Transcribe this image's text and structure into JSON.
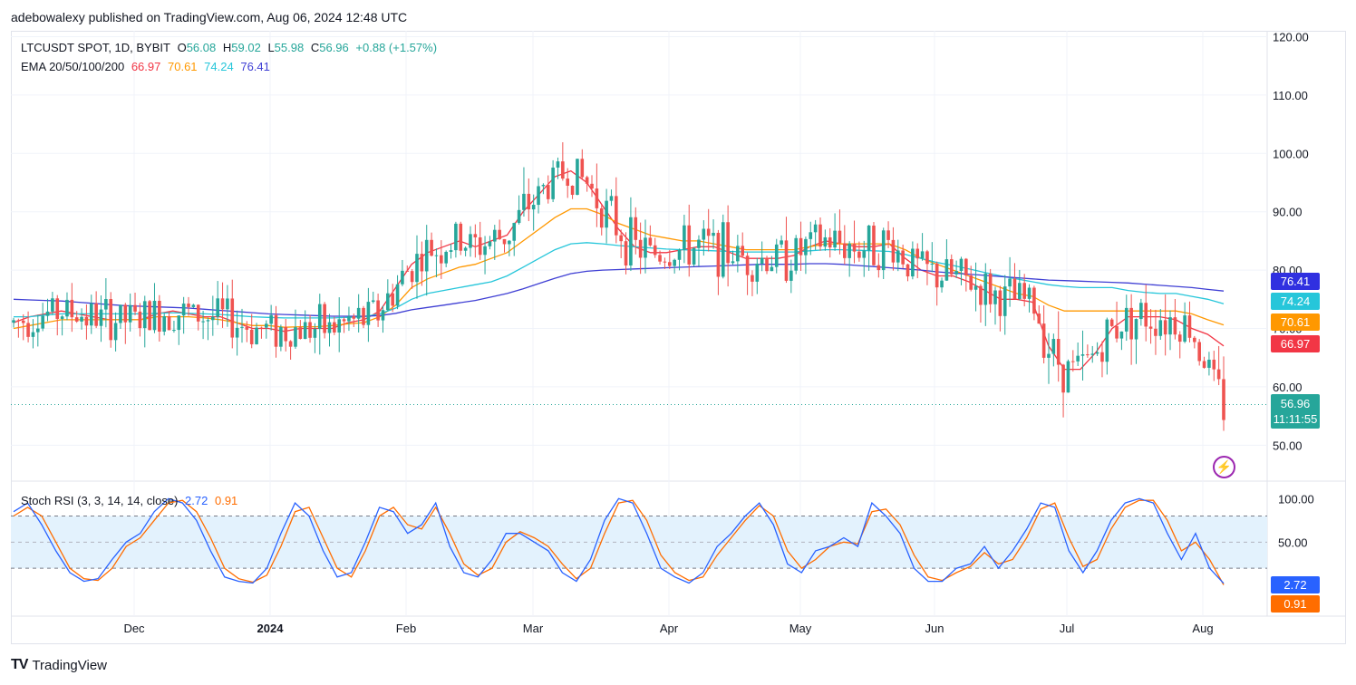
{
  "header": {
    "text": "adebowalexy published on TradingView.com, Aug 06, 2024 12:48 UTC"
  },
  "legend": {
    "symbol": "LTCUSDT SPOT, 1D, BYBIT",
    "o_label": "O",
    "o_value": "56.08",
    "h_label": "H",
    "h_value": "59.02",
    "l_label": "L",
    "l_value": "55.98",
    "c_label": "C",
    "c_value": "56.96",
    "change": "+0.88 (+1.57%)",
    "ema_label": "EMA 20/50/100/200",
    "ema20": "66.97",
    "ema50": "70.61",
    "ema100": "74.24",
    "ema200": "76.41"
  },
  "price_tags": {
    "ema200": "76.41",
    "ema100": "74.24",
    "ema50": "70.61",
    "ema20": "66.97",
    "last": "56.96",
    "countdown": "11:11:55"
  },
  "rsi_legend": {
    "label": "Stoch RSI (3, 3, 14, 14, close)",
    "k": "2.72",
    "d": "0.91"
  },
  "rsi_tags": {
    "k": "2.72",
    "d": "0.91"
  },
  "footer": {
    "logo": "TV",
    "brand": "TradingView"
  },
  "colors": {
    "up": "#26a69a",
    "down": "#ef5350",
    "ema20": "#f23645",
    "ema50": "#ff9800",
    "ema100": "#26c6da",
    "ema200": "#3f3fd4",
    "stoch_k": "#2962ff",
    "stoch_d": "#ff6d00",
    "band": "#e3f2fd"
  },
  "chart_data": [
    {
      "type": "candlestick",
      "title": "LTCUSDT SPOT, 1D, BYBIT",
      "x_ticks": [
        "Dec",
        "2024",
        "Feb",
        "Mar",
        "Apr",
        "May",
        "Jun",
        "Jul",
        "Aug"
      ],
      "y_ticks": [
        "120.00",
        "110.00",
        "100.00",
        "90.00",
        "80.00",
        "70.00",
        "60.00",
        "50.00"
      ],
      "ylim": [
        44,
        121
      ],
      "series": [
        {
          "name": "EMA 20",
          "values": [
            71,
            72,
            72.5,
            73,
            72.5,
            72,
            71.5,
            71.5,
            71.5,
            72.5,
            73,
            72.5,
            72,
            72,
            71,
            70,
            70,
            69.5,
            70,
            70,
            70,
            71,
            71.5,
            73,
            77,
            81,
            83,
            84,
            85,
            84,
            85,
            86,
            90,
            93,
            96,
            97,
            95,
            91,
            87,
            84,
            83,
            83,
            83.5,
            84,
            84,
            83,
            82,
            82,
            82,
            82.5,
            84,
            85,
            84.5,
            84,
            84,
            84.5,
            82,
            80,
            79,
            79,
            78,
            76.5,
            75,
            75,
            74.5,
            67,
            63,
            63,
            66,
            70,
            72,
            72,
            72,
            71.5,
            70,
            69,
            67
          ]
        },
        {
          "name": "EMA 50",
          "values": [
            70,
            70.5,
            71,
            71.5,
            71.5,
            71.5,
            71.5,
            71.5,
            71.5,
            72,
            72,
            72,
            71.8,
            71.5,
            71,
            70.5,
            70.5,
            70.2,
            70.3,
            70.3,
            70.5,
            70.8,
            71,
            72,
            74,
            77,
            78.5,
            79.5,
            80.5,
            81,
            82,
            83,
            85,
            87,
            89,
            90.5,
            90.5,
            89.5,
            88,
            87,
            86,
            85.5,
            85,
            85,
            84.5,
            84,
            83.5,
            83.5,
            83.5,
            83.5,
            84,
            84.5,
            84.5,
            84.5,
            84.5,
            84.5,
            83.5,
            82,
            81,
            80,
            79,
            78,
            77,
            76,
            75.5,
            74,
            73,
            73,
            73,
            73,
            73,
            73,
            73,
            73,
            72.5,
            71.5,
            70.61
          ]
        },
        {
          "name": "EMA 100",
          "values": [
            72,
            72,
            72.3,
            72.5,
            72.5,
            72.5,
            72.5,
            72.5,
            72.5,
            72.6,
            72.7,
            72.6,
            72.5,
            72.4,
            72.2,
            72,
            71.9,
            71.8,
            71.8,
            71.8,
            71.8,
            71.9,
            72,
            72.5,
            73.5,
            75,
            76,
            76.5,
            77,
            77.5,
            78,
            79,
            80.5,
            82,
            83.5,
            84.5,
            84.7,
            84.5,
            84.2,
            84,
            83.8,
            83.6,
            83.5,
            83.4,
            83.3,
            83.2,
            83.1,
            83.1,
            83.1,
            83.1,
            83.3,
            83.5,
            83.5,
            83.4,
            83.3,
            83.2,
            82.7,
            82,
            81.3,
            80.8,
            80.2,
            79.6,
            79,
            78.5,
            78,
            77.5,
            77.2,
            77,
            77,
            77,
            76.5,
            76.2,
            76,
            76,
            75.5,
            75,
            74.24
          ]
        },
        {
          "name": "EMA 200",
          "values": [
            75,
            74.9,
            74.8,
            74.7,
            74.5,
            74.3,
            74.1,
            73.9,
            73.8,
            73.7,
            73.6,
            73.5,
            73.3,
            73.1,
            72.9,
            72.7,
            72.5,
            72.4,
            72.3,
            72.2,
            72.1,
            72.1,
            72.1,
            72.2,
            72.6,
            73.2,
            73.6,
            74,
            74.4,
            74.8,
            75.4,
            76,
            76.8,
            77.7,
            78.6,
            79.4,
            79.8,
            80,
            80.1,
            80.2,
            80.3,
            80.4,
            80.5,
            80.6,
            80.7,
            80.8,
            80.9,
            81,
            81,
            81,
            81.1,
            81.1,
            81,
            80.8,
            80.6,
            80.4,
            80.2,
            80,
            79.7,
            79.5,
            79.3,
            79.1,
            78.9,
            78.7,
            78.5,
            78.3,
            78.2,
            78.1,
            78,
            77.9,
            77.8,
            77.6,
            77.4,
            77.2,
            77,
            76.7,
            76.41
          ]
        }
      ]
    },
    {
      "type": "line",
      "title": "Stoch RSI (3, 3, 14, 14, close)",
      "y_ticks": [
        "100.00",
        "50.00"
      ],
      "ylim": [
        -35,
        118
      ],
      "bands": [
        20,
        80
      ],
      "series": [
        {
          "name": "K",
          "values": [
            85,
            95,
            70,
            40,
            15,
            5,
            8,
            30,
            50,
            60,
            85,
            100,
            95,
            75,
            40,
            10,
            5,
            3,
            20,
            60,
            95,
            80,
            40,
            10,
            15,
            50,
            90,
            85,
            60,
            70,
            95,
            45,
            15,
            10,
            30,
            60,
            60,
            50,
            40,
            15,
            5,
            30,
            75,
            100,
            95,
            60,
            20,
            10,
            3,
            15,
            45,
            60,
            80,
            95,
            70,
            25,
            15,
            40,
            45,
            55,
            45,
            95,
            80,
            60,
            20,
            5,
            5,
            20,
            25,
            45,
            20,
            40,
            65,
            95,
            90,
            40,
            15,
            40,
            75,
            95,
            100,
            95,
            60,
            30,
            60,
            20,
            2.72
          ]
        },
        {
          "name": "D",
          "values": [
            80,
            90,
            80,
            50,
            20,
            8,
            6,
            20,
            45,
            55,
            75,
            95,
            98,
            85,
            55,
            20,
            8,
            4,
            12,
            45,
            85,
            90,
            55,
            20,
            10,
            40,
            80,
            90,
            70,
            65,
            90,
            60,
            25,
            12,
            20,
            50,
            62,
            55,
            45,
            25,
            8,
            20,
            60,
            95,
            98,
            75,
            35,
            15,
            6,
            10,
            35,
            55,
            75,
            92,
            80,
            40,
            20,
            30,
            45,
            50,
            48,
            85,
            88,
            70,
            35,
            10,
            6,
            15,
            22,
            38,
            25,
            30,
            55,
            88,
            95,
            55,
            22,
            30,
            65,
            90,
            98,
            98,
            75,
            40,
            50,
            30,
            0.91
          ]
        }
      ]
    }
  ]
}
